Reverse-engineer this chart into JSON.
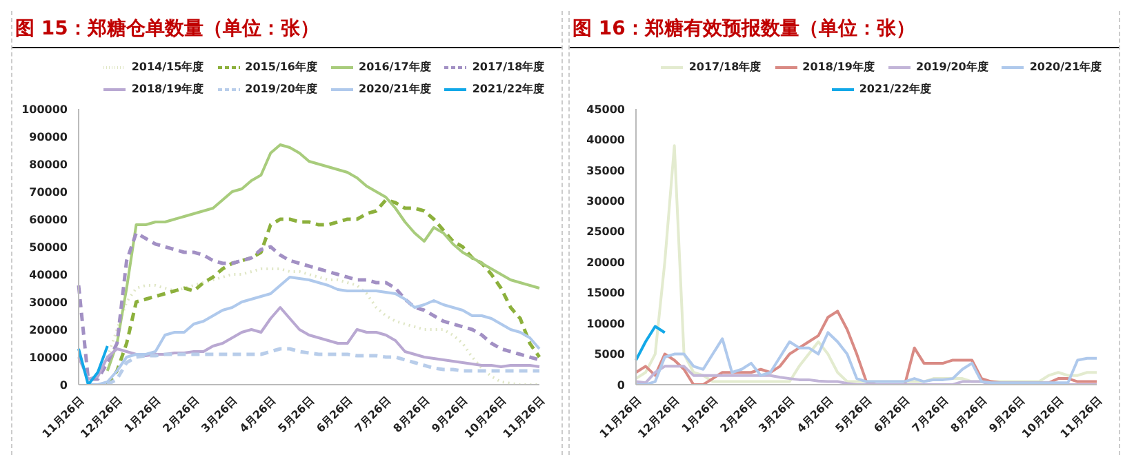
{
  "chart_data": [
    {
      "type": "line",
      "title": "图 15：郑糖仓单数量（单位：张）",
      "categories": [
        "11月26日",
        null,
        null,
        null,
        "12月26日",
        null,
        null,
        null,
        "1月26日",
        null,
        null,
        null,
        "2月26日",
        null,
        null,
        null,
        "3月26日",
        null,
        null,
        null,
        "4月26日",
        null,
        null,
        null,
        "5月26日",
        null,
        null,
        null,
        "6月26日",
        null,
        null,
        null,
        "7月26日",
        null,
        null,
        null,
        "8月26日",
        null,
        null,
        null,
        "9月26日",
        null,
        null,
        null,
        "10月26日",
        null,
        null,
        null,
        "11月26日"
      ],
      "ylim": [
        0,
        100000
      ],
      "yticks": [
        0,
        10000,
        20000,
        30000,
        40000,
        50000,
        60000,
        70000,
        80000,
        90000,
        100000
      ],
      "grid": false,
      "legend": "top",
      "marker": "none",
      "series": [
        {
          "name": "2014/15年度",
          "color": "#dfe6c4",
          "line_style": "dotted",
          "values": [
            null,
            null,
            null,
            10000,
            20000,
            30000,
            35000,
            36000,
            36000,
            35000,
            34000,
            35000,
            36000,
            37000,
            38000,
            39000,
            40000,
            40000,
            41000,
            42000,
            42000,
            42000,
            41000,
            41000,
            40000,
            39000,
            38000,
            38000,
            37000,
            36000,
            33000,
            28000,
            25000,
            23000,
            22000,
            21000,
            20000,
            20000,
            20000,
            18000,
            15000,
            10000,
            6000,
            3000,
            1000,
            500,
            0,
            0,
            0
          ]
        },
        {
          "name": "2015/16年度",
          "color": "#8cb03c",
          "line_style": "dashed",
          "values": [
            null,
            null,
            null,
            0,
            5000,
            15000,
            30000,
            31000,
            32000,
            33000,
            34000,
            35000,
            34000,
            37000,
            39000,
            42000,
            44000,
            45000,
            46000,
            48000,
            58000,
            60000,
            60000,
            59000,
            59000,
            58000,
            58000,
            59000,
            60000,
            60000,
            62000,
            63000,
            67000,
            66000,
            64000,
            64000,
            63000,
            60000,
            56000,
            52000,
            50000,
            46000,
            44000,
            40000,
            35000,
            28000,
            24000,
            15000,
            10000
          ]
        },
        {
          "name": "2016/17年度",
          "color": "#a8cc7c",
          "line_style": "solid",
          "values": [
            null,
            null,
            null,
            5000,
            15000,
            35000,
            58000,
            58000,
            59000,
            59000,
            60000,
            61000,
            62000,
            63000,
            64000,
            67000,
            70000,
            71000,
            74000,
            76000,
            84000,
            87000,
            86000,
            84000,
            81000,
            80000,
            79000,
            78000,
            77000,
            75000,
            72000,
            70000,
            68000,
            64000,
            59000,
            55000,
            52000,
            57000,
            55000,
            51000,
            48000,
            46000,
            44000,
            42000,
            40000,
            38000,
            37000,
            36000,
            35000
          ]
        },
        {
          "name": "2017/18年度",
          "color": "#a290c4",
          "line_style": "dashed",
          "values": [
            36000,
            2000,
            2000,
            8000,
            15000,
            45000,
            55000,
            53000,
            51000,
            50000,
            49000,
            48000,
            48000,
            47000,
            45000,
            44000,
            44000,
            45000,
            46000,
            49000,
            50000,
            47000,
            45000,
            44000,
            43000,
            42000,
            41000,
            40000,
            39000,
            38000,
            38000,
            37000,
            37000,
            35000,
            31000,
            28000,
            27000,
            25000,
            23000,
            22000,
            21000,
            20000,
            18000,
            15000,
            13000,
            12000,
            11000,
            10000,
            9000
          ]
        },
        {
          "name": "2018/19年度",
          "color": "#b9a8d2",
          "line_style": "solid",
          "values": [
            10000,
            2000,
            3000,
            10000,
            13000,
            12000,
            11000,
            10500,
            11000,
            11000,
            11500,
            11500,
            12000,
            12000,
            14000,
            15000,
            17000,
            19000,
            20000,
            19000,
            24000,
            28000,
            24000,
            20000,
            18000,
            17000,
            16000,
            15000,
            15000,
            20000,
            19000,
            19000,
            18000,
            16000,
            12000,
            11000,
            10000,
            9500,
            9000,
            8500,
            8000,
            7500,
            7000,
            7000,
            6500,
            7000,
            7000,
            7000,
            6500
          ]
        },
        {
          "name": "2019/20年度",
          "color": "#b8cdea",
          "line_style": "dashed",
          "values": [
            null,
            null,
            null,
            0,
            2000,
            8000,
            10000,
            10500,
            10500,
            11000,
            11000,
            11000,
            11000,
            11000,
            11000,
            11000,
            11000,
            11000,
            11000,
            11000,
            12000,
            13000,
            13000,
            12000,
            11500,
            11000,
            11000,
            11000,
            11000,
            10500,
            10500,
            10500,
            10000,
            10000,
            9000,
            8000,
            7000,
            6000,
            5500,
            5500,
            5000,
            5000,
            5000,
            5000,
            5000,
            5000,
            5000,
            5000,
            5000
          ]
        },
        {
          "name": "2020/21年度",
          "color": "#afc9ec",
          "line_style": "solid",
          "values": [
            null,
            0,
            0,
            1000,
            5000,
            10000,
            11000,
            11000,
            12000,
            18000,
            19000,
            19000,
            22000,
            23000,
            25000,
            27000,
            28000,
            30000,
            31000,
            32000,
            33000,
            36000,
            39000,
            38500,
            38000,
            37000,
            36000,
            34500,
            34000,
            34000,
            34000,
            34000,
            33500,
            33000,
            31000,
            28000,
            29000,
            30500,
            29000,
            28000,
            27000,
            25000,
            25000,
            24000,
            22000,
            20000,
            19000,
            17000,
            13000
          ]
        },
        {
          "name": "2021/22年度",
          "color": "#12a8e8",
          "line_style": "solid",
          "values": [
            13000,
            0,
            4500,
            14000,
            null,
            null,
            null,
            null,
            null,
            null,
            null,
            null,
            null,
            null,
            null,
            null,
            null,
            null,
            null,
            null,
            null,
            null,
            null,
            null,
            null,
            null,
            null,
            null,
            null,
            null,
            null,
            null,
            null,
            null,
            null,
            null,
            null,
            null,
            null,
            null,
            null,
            null,
            null,
            null,
            null,
            null,
            null,
            null,
            null
          ]
        }
      ]
    },
    {
      "type": "line",
      "title": "图 16：郑糖有效预报数量（单位：张）",
      "categories": [
        "11月26日",
        null,
        null,
        null,
        "12月26日",
        null,
        null,
        null,
        "1月26日",
        null,
        null,
        null,
        "2月26日",
        null,
        null,
        null,
        "3月26日",
        null,
        null,
        null,
        "4月26日",
        null,
        null,
        null,
        "5月26日",
        null,
        null,
        null,
        "6月26日",
        null,
        null,
        null,
        "7月26日",
        null,
        null,
        null,
        "8月26日",
        null,
        null,
        null,
        "9月26日",
        null,
        null,
        null,
        "10月26日",
        null,
        null,
        null,
        "11月26日"
      ],
      "ylim": [
        0,
        45000
      ],
      "yticks": [
        0,
        5000,
        10000,
        15000,
        20000,
        25000,
        30000,
        35000,
        40000,
        45000
      ],
      "grid": false,
      "legend": "top",
      "marker": "none",
      "series": [
        {
          "name": "2017/18年度",
          "color": "#e3ebcf",
          "line_style": "solid",
          "values": [
            1000,
            2000,
            5000,
            20000,
            39000,
            5000,
            2000,
            1500,
            500,
            500,
            500,
            500,
            500,
            500,
            500,
            500,
            500,
            3000,
            5000,
            7000,
            5000,
            2000,
            500,
            500,
            500,
            500,
            500,
            500,
            500,
            500,
            500,
            1000,
            1000,
            1000,
            1000,
            500,
            500,
            500,
            500,
            500,
            500,
            500,
            500,
            1500,
            2000,
            1500,
            1500,
            2000,
            2000
          ]
        },
        {
          "name": "2018/19年度",
          "color": "#d98a84",
          "line_style": "solid",
          "values": [
            2000,
            3000,
            1500,
            5000,
            4000,
            2500,
            0,
            0,
            1000,
            2000,
            2000,
            2000,
            2000,
            2500,
            2000,
            3000,
            5000,
            6000,
            7000,
            8000,
            11000,
            12000,
            9000,
            5000,
            500,
            0,
            0,
            0,
            0,
            6000,
            3500,
            3500,
            3500,
            4000,
            4000,
            4000,
            1000,
            500,
            300,
            300,
            300,
            300,
            300,
            300,
            1000,
            1000,
            500,
            500,
            500
          ]
        },
        {
          "name": "2019/20年度",
          "color": "#c2b5d8",
          "line_style": "solid",
          "values": [
            500,
            300,
            2000,
            3000,
            3000,
            3000,
            1500,
            1500,
            1500,
            1500,
            1500,
            1500,
            1500,
            1500,
            1500,
            1200,
            1000,
            800,
            800,
            600,
            500,
            500,
            200,
            0,
            0,
            0,
            0,
            0,
            0,
            0,
            0,
            0,
            0,
            0,
            500,
            500,
            500,
            0,
            0,
            0,
            0,
            0,
            0,
            0,
            0,
            0,
            0,
            0,
            0
          ]
        },
        {
          "name": "2020/21年度",
          "color": "#afc9ec",
          "line_style": "solid",
          "values": [
            0,
            0,
            500,
            4500,
            5000,
            5000,
            3000,
            2500,
            5000,
            7500,
            2000,
            2500,
            3500,
            1500,
            2000,
            4500,
            7000,
            6000,
            6000,
            5000,
            8500,
            7000,
            5000,
            1000,
            500,
            500,
            500,
            500,
            500,
            1000,
            500,
            800,
            800,
            1000,
            2500,
            3500,
            500,
            300,
            300,
            300,
            300,
            300,
            300,
            300,
            300,
            300,
            4000,
            4300,
            4300
          ]
        },
        {
          "name": "2021/22年度",
          "color": "#12a8e8",
          "line_style": "solid",
          "values": [
            4000,
            7000,
            9500,
            8500,
            null,
            null,
            null,
            null,
            null,
            null,
            null,
            null,
            null,
            null,
            null,
            null,
            null,
            null,
            null,
            null,
            null,
            null,
            null,
            null,
            null,
            null,
            null,
            null,
            null,
            null,
            null,
            null,
            null,
            null,
            null,
            null,
            null,
            null,
            null,
            null,
            null,
            null,
            null,
            null,
            null,
            null,
            null,
            null,
            null
          ]
        }
      ]
    }
  ]
}
